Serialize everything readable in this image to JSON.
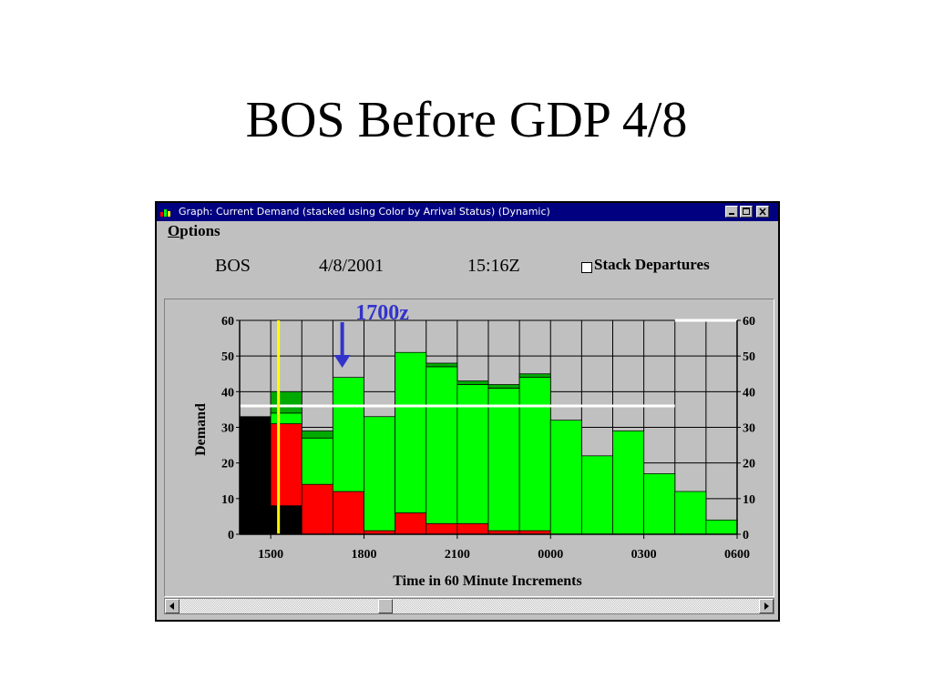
{
  "slide": {
    "title": "BOS Before GDP 4/8"
  },
  "window": {
    "title": "Graph: Current Demand (stacked using Color by Arrival Status) (Dynamic)",
    "menu": {
      "options_first": "O",
      "options_rest": "ptions"
    },
    "airport": "BOS",
    "date": "4/8/2001",
    "time": "15:16Z",
    "stack_departures_label": "Stack Departures",
    "stack_departures_checked": false,
    "min_icon": "minimize-icon",
    "max_icon": "maximize-icon",
    "close_icon": "close-icon"
  },
  "annotation": {
    "label": "1700z",
    "color": "#3333cc"
  },
  "colors": {
    "black": "#000000",
    "red": "#ff0000",
    "green": "#00ff00",
    "dark_green": "#00aa00",
    "current_time_line": "#ffff00",
    "rate_line": "#ffffff"
  },
  "chart_data": {
    "type": "bar",
    "stacked": true,
    "ylabel": "Demand",
    "xlabel": "Time in 60 Minute Increments",
    "ylim": [
      0,
      60
    ],
    "y_ticks": [
      "0",
      "10",
      "20",
      "30",
      "40",
      "50",
      "60"
    ],
    "x_tick_labels": [
      "1500",
      "1800",
      "2100",
      "0000",
      "0300",
      "0600"
    ],
    "bars": [
      {
        "black": 33,
        "red": 0,
        "green": 0,
        "dark_green": 0
      },
      {
        "black": 8,
        "red": 23,
        "green": 3,
        "dark_green": 6
      },
      {
        "black": 0,
        "red": 14,
        "green": 13,
        "dark_green": 2
      },
      {
        "black": 0,
        "red": 12,
        "green": 32,
        "dark_green": 0
      },
      {
        "black": 0,
        "red": 1,
        "green": 32,
        "dark_green": 0
      },
      {
        "black": 0,
        "red": 6,
        "green": 45,
        "dark_green": 0
      },
      {
        "black": 0,
        "red": 3,
        "green": 44,
        "dark_green": 1
      },
      {
        "black": 0,
        "red": 3,
        "green": 39,
        "dark_green": 1
      },
      {
        "black": 0,
        "red": 1,
        "green": 40,
        "dark_green": 1
      },
      {
        "black": 0,
        "red": 1,
        "green": 43,
        "dark_green": 1
      },
      {
        "black": 0,
        "red": 0,
        "green": 32,
        "dark_green": 0
      },
      {
        "black": 0,
        "red": 0,
        "green": 22,
        "dark_green": 0
      },
      {
        "black": 0,
        "red": 0,
        "green": 29,
        "dark_green": 0
      },
      {
        "black": 0,
        "red": 0,
        "green": 17,
        "dark_green": 0
      },
      {
        "black": 0,
        "red": 0,
        "green": 12,
        "dark_green": 0
      },
      {
        "black": 0,
        "red": 0,
        "green": 4,
        "dark_green": 0
      }
    ],
    "current_time_line_x": 1.25,
    "rate_lines": [
      {
        "x_start": 0,
        "x_end": 14,
        "y": 36
      },
      {
        "x_start": 14,
        "x_end": 16,
        "y": 60
      }
    ],
    "annotation_arrow_x": 3.3,
    "grid": true
  }
}
